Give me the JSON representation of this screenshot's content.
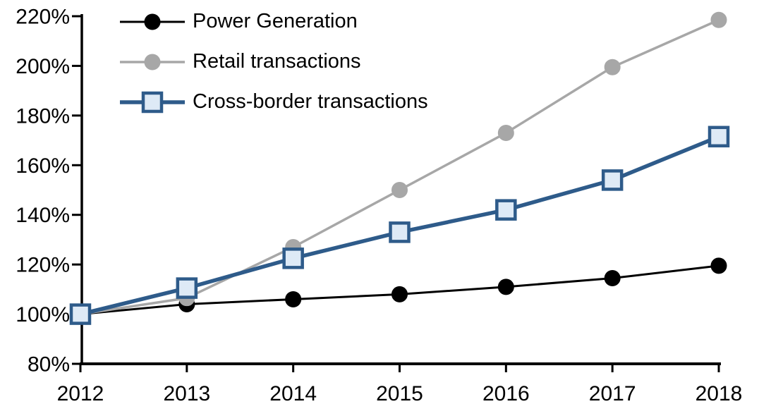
{
  "chart_data": {
    "type": "line",
    "title": "",
    "xlabel": "",
    "ylabel": "",
    "x": [
      2012,
      2013,
      2014,
      2015,
      2016,
      2017,
      2018
    ],
    "x_tick_labels": [
      "2012",
      "2013",
      "2014",
      "2015",
      "2016",
      "2017",
      "2018"
    ],
    "y_axis": {
      "min": 80,
      "max": 220,
      "step": 20,
      "format": "percent"
    },
    "y_tick_labels": [
      "80%",
      "100%",
      "120%",
      "140%",
      "160%",
      "180%",
      "200%",
      "220%"
    ],
    "grid": "off",
    "legend_position": "top-left-inside",
    "series": [
      {
        "name": "Power Generation",
        "values": [
          100,
          104,
          106,
          108,
          111,
          114.5,
          119.5
        ],
        "color": "#000000",
        "marker": "circle",
        "marker_fill": "#000000",
        "marker_stroke": "#000000",
        "line_width": 3
      },
      {
        "name": "Retail transactions",
        "values": [
          100,
          106.5,
          127,
          150,
          173,
          199.5,
          218.5
        ],
        "color": "#A7A7A7",
        "marker": "circle",
        "marker_fill": "#A7A7A7",
        "marker_stroke": "#A7A7A7",
        "line_width": 3.5
      },
      {
        "name": "Cross-border transactions",
        "values": [
          100,
          110.5,
          122.5,
          133,
          142,
          154,
          171.5
        ],
        "color": "#2E5B8A",
        "marker": "square",
        "marker_fill": "#DEEAF6",
        "marker_stroke": "#2E5B8A",
        "line_width": 5.5
      }
    ]
  },
  "legend": {
    "items": [
      {
        "label": "Power Generation"
      },
      {
        "label": "Retail transactions"
      },
      {
        "label": "Cross-border transactions"
      }
    ]
  },
  "colors": {
    "axis": "#000000",
    "background": "#FFFFFF",
    "power_generation": "#000000",
    "retail_transactions": "#A7A7A7",
    "cross_border_line": "#2E5B8A",
    "cross_border_marker_fill": "#DEEAF6"
  }
}
